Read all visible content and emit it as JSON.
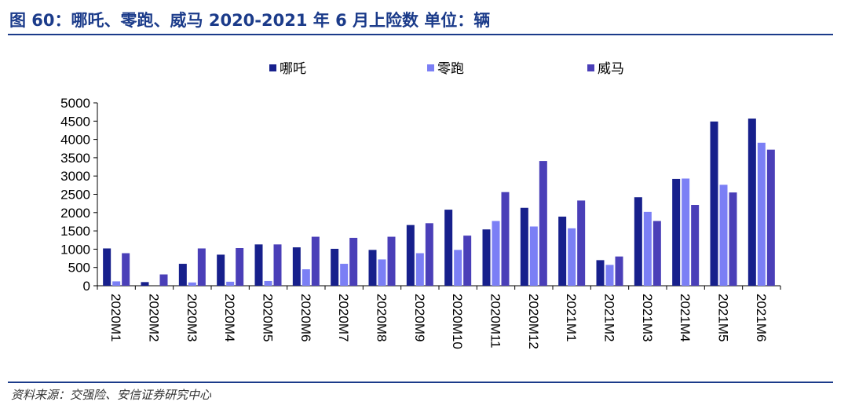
{
  "title": "图 60：哪吒、零跑、威马 2020-2021 年 6 月上险数 单位：辆",
  "source": "资料来源：交强险、安信证券研究中心",
  "colors": {
    "accent": "#1b3b8a"
  },
  "chart_data": {
    "type": "bar",
    "categories": [
      "2020M1",
      "2020M2",
      "2020M3",
      "2020M4",
      "2020M5",
      "2020M6",
      "2020M7",
      "2020M8",
      "2020M9",
      "2020M10",
      "2020M11",
      "2020M12",
      "2021M1",
      "2021M2",
      "2021M3",
      "2021M4",
      "2021M5",
      "2021M6"
    ],
    "series": [
      {
        "name": "哪吒",
        "color": "#17208c",
        "values": [
          1020,
          100,
          600,
          850,
          1130,
          1050,
          1010,
          980,
          1660,
          2080,
          1540,
          2130,
          1890,
          700,
          2420,
          2920,
          4490,
          4570
        ]
      },
      {
        "name": "零跑",
        "color": "#7b7ff5",
        "values": [
          120,
          0,
          90,
          110,
          130,
          450,
          600,
          720,
          890,
          980,
          1770,
          1620,
          1570,
          570,
          2020,
          2930,
          2760,
          3910
        ]
      },
      {
        "name": "威马",
        "color": "#4a3fb8",
        "values": [
          890,
          310,
          1020,
          1030,
          1130,
          1340,
          1310,
          1340,
          1710,
          1370,
          2560,
          3410,
          2330,
          800,
          1770,
          2210,
          2550,
          3720
        ]
      }
    ],
    "yticks": [
      0,
      500,
      1000,
      1500,
      2000,
      2500,
      3000,
      3500,
      4000,
      4500,
      5000
    ],
    "ylim": [
      0,
      5000
    ],
    "legend": "top",
    "grid": false
  }
}
